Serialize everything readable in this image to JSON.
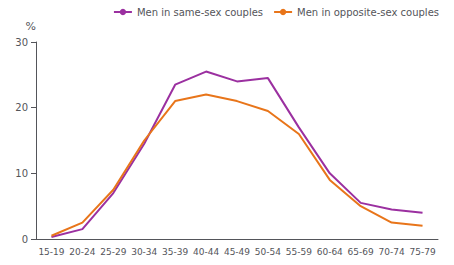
{
  "chart_data": {
    "type": "line",
    "ylabel": "%",
    "categories": [
      "15-19",
      "20-24",
      "25-29",
      "30-34",
      "35-39",
      "40-44",
      "45-49",
      "50-54",
      "55-59",
      "60-64",
      "65-69",
      "70-74",
      "75-79"
    ],
    "series": [
      {
        "name": "Men in same-sex couples",
        "color": "#9B30A0",
        "values": [
          0.3,
          1.5,
          7.0,
          14.5,
          23.5,
          25.5,
          24.0,
          24.5,
          17.0,
          10.0,
          5.5,
          4.5,
          4.0
        ]
      },
      {
        "name": "Men in opposite-sex couples",
        "color": "#E8751A",
        "values": [
          0.5,
          2.5,
          7.5,
          15.0,
          21.0,
          22.0,
          21.0,
          19.5,
          16.0,
          9.0,
          5.0,
          2.5,
          2.0
        ]
      }
    ],
    "ylim": [
      0,
      30
    ],
    "yticks": [
      0,
      10,
      20,
      30
    ],
    "grid": false,
    "legend": "upper right"
  }
}
